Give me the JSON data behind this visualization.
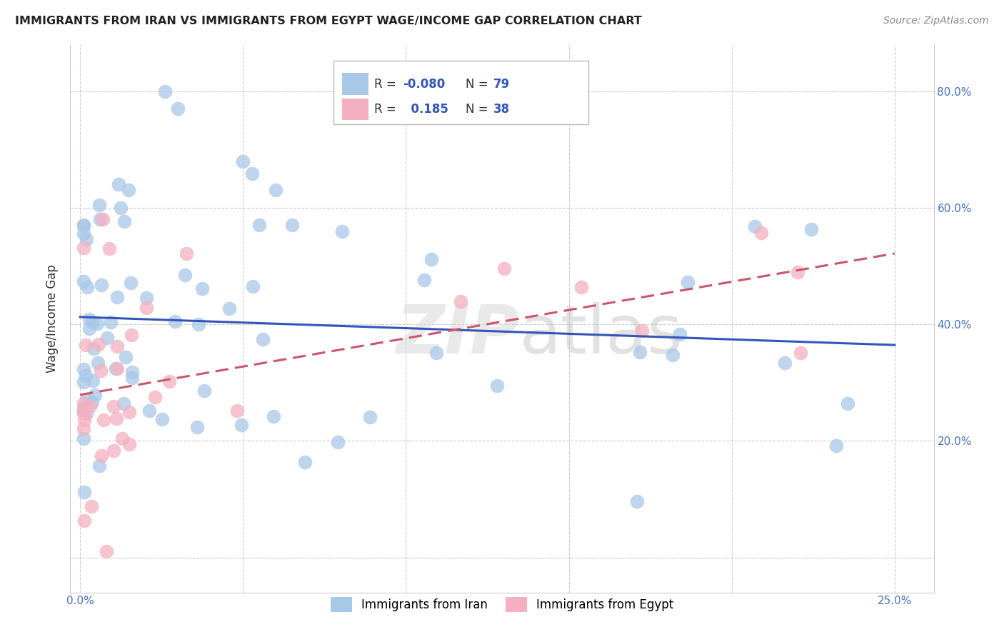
{
  "title": "IMMIGRANTS FROM IRAN VS IMMIGRANTS FROM EGYPT WAGE/INCOME GAP CORRELATION CHART",
  "source": "Source: ZipAtlas.com",
  "ylabel": "Wage/Income Gap",
  "x_tick_positions": [
    0.0,
    0.05,
    0.1,
    0.15,
    0.2,
    0.25
  ],
  "x_tick_labels": [
    "0.0%",
    "",
    "",
    "",
    "",
    "25.0%"
  ],
  "y_tick_positions": [
    0.0,
    0.2,
    0.4,
    0.6,
    0.8
  ],
  "y_tick_labels": [
    "",
    "20.0%",
    "40.0%",
    "60.0%",
    "80.0%"
  ],
  "xlim": [
    -0.003,
    0.262
  ],
  "ylim": [
    -0.06,
    0.88
  ],
  "iran_R": -0.08,
  "iran_N": 79,
  "egypt_R": 0.185,
  "egypt_N": 38,
  "iran_color": "#a8c8e8",
  "egypt_color": "#f4b0c0",
  "iran_line_color": "#3355bb",
  "egypt_line_color": "#cc5566",
  "legend_label_iran": "Immigrants from Iran",
  "legend_label_egypt": "Immigrants from Egypt",
  "watermark": "ZIPatlas",
  "background_color": "#ffffff",
  "grid_color": "#cccccc",
  "title_color": "#222222",
  "axis_label_color": "#333333",
  "tick_color": "#4472c4",
  "source_color": "#888888"
}
